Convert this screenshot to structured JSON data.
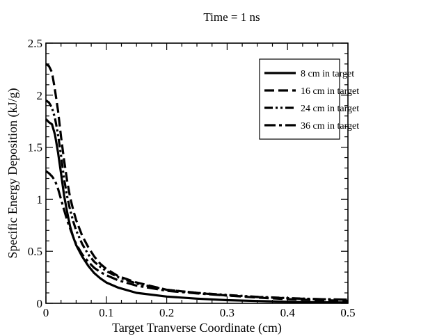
{
  "chart_data": {
    "type": "line",
    "title": "Time  =  1  ns",
    "xlabel": "Target  Tranverse Coordinate (cm)",
    "ylabel": "Specific Energy Deposition (kJ/g)",
    "xlim": [
      0,
      0.5
    ],
    "ylim": [
      0,
      2.5
    ],
    "xticks": [
      0,
      0.1,
      0.2,
      0.3,
      0.4,
      0.5
    ],
    "xtick_labels": [
      "0",
      "0.1",
      "0.2",
      "0.3",
      "0.4",
      "0.5"
    ],
    "yticks": [
      0,
      0.5,
      1,
      1.5,
      2,
      2.5
    ],
    "ytick_labels": [
      "0",
      "0.5",
      "1",
      "1.5",
      "2",
      "2.5"
    ],
    "grid": false,
    "legend_position": "top-right",
    "series": [
      {
        "name": "8 cm in target",
        "dash": "solid",
        "x": [
          0,
          0.005,
          0.01,
          0.015,
          0.02,
          0.025,
          0.03,
          0.035,
          0.04,
          0.045,
          0.05,
          0.06,
          0.07,
          0.08,
          0.09,
          0.1,
          0.12,
          0.15,
          0.2,
          0.25,
          0.3,
          0.35,
          0.4,
          0.45,
          0.5
        ],
        "y": [
          1.77,
          1.74,
          1.72,
          1.62,
          1.45,
          1.25,
          1.04,
          0.88,
          0.74,
          0.64,
          0.56,
          0.45,
          0.36,
          0.29,
          0.24,
          0.2,
          0.15,
          0.1,
          0.065,
          0.045,
          0.03,
          0.022,
          0.015,
          0.01,
          0.008
        ]
      },
      {
        "name": "16 cm in target",
        "dash": "dashed",
        "x": [
          0,
          0.005,
          0.01,
          0.015,
          0.02,
          0.025,
          0.03,
          0.035,
          0.04,
          0.045,
          0.05,
          0.06,
          0.07,
          0.08,
          0.09,
          0.1,
          0.12,
          0.15,
          0.2,
          0.25,
          0.3,
          0.35,
          0.4,
          0.45,
          0.5
        ],
        "y": [
          2.3,
          2.28,
          2.22,
          2.05,
          1.85,
          1.6,
          1.38,
          1.18,
          1.02,
          0.9,
          0.8,
          0.65,
          0.54,
          0.45,
          0.38,
          0.33,
          0.26,
          0.2,
          0.13,
          0.1,
          0.075,
          0.055,
          0.04,
          0.03,
          0.025
        ]
      },
      {
        "name": "24 cm in target",
        "dash": "dash-dot-dot",
        "x": [
          0,
          0.005,
          0.01,
          0.015,
          0.02,
          0.025,
          0.03,
          0.035,
          0.04,
          0.045,
          0.05,
          0.06,
          0.07,
          0.08,
          0.09,
          0.1,
          0.12,
          0.15,
          0.2,
          0.25,
          0.3,
          0.35,
          0.4,
          0.45,
          0.5
        ],
        "y": [
          1.95,
          1.93,
          1.88,
          1.78,
          1.62,
          1.42,
          1.2,
          1.03,
          0.9,
          0.79,
          0.7,
          0.57,
          0.47,
          0.4,
          0.35,
          0.31,
          0.25,
          0.19,
          0.13,
          0.1,
          0.08,
          0.062,
          0.05,
          0.04,
          0.035
        ]
      },
      {
        "name": "36 cm in target",
        "dash": "long-dash-dot",
        "x": [
          0,
          0.005,
          0.01,
          0.015,
          0.02,
          0.025,
          0.03,
          0.035,
          0.04,
          0.045,
          0.05,
          0.06,
          0.07,
          0.08,
          0.09,
          0.1,
          0.12,
          0.15,
          0.2,
          0.25,
          0.3,
          0.35,
          0.4,
          0.45,
          0.5
        ],
        "y": [
          1.27,
          1.25,
          1.22,
          1.18,
          1.1,
          1.0,
          0.9,
          0.8,
          0.72,
          0.64,
          0.57,
          0.47,
          0.4,
          0.34,
          0.3,
          0.27,
          0.22,
          0.17,
          0.12,
          0.095,
          0.075,
          0.06,
          0.048,
          0.04,
          0.035
        ]
      }
    ]
  }
}
